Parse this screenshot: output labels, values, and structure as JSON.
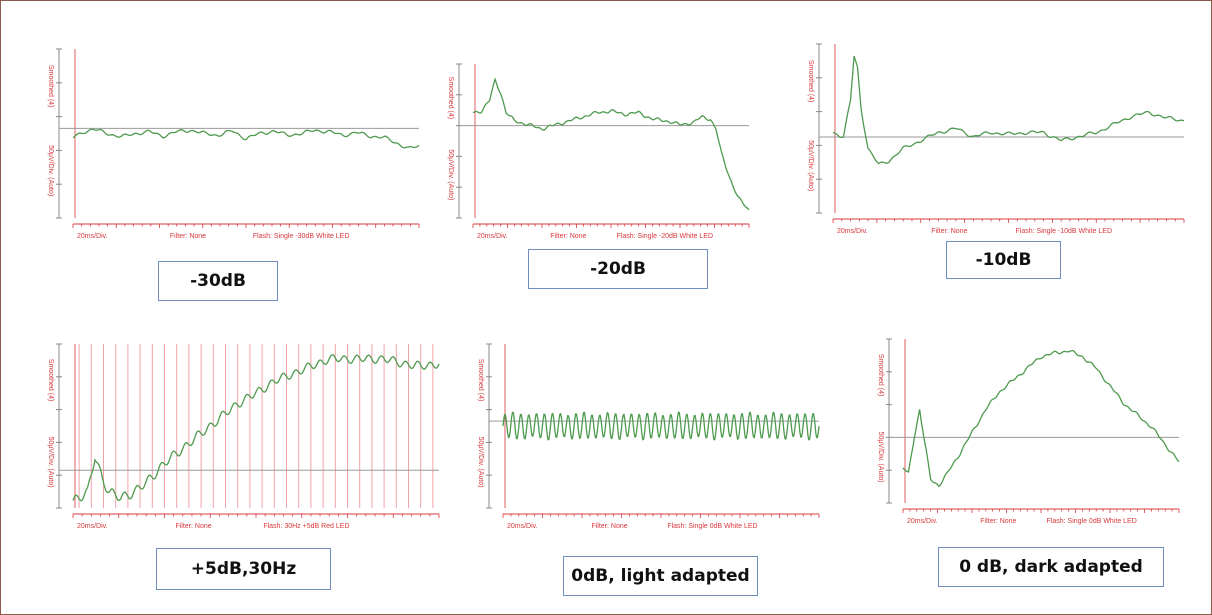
{
  "figure": {
    "colors": {
      "trace": "#4e9a4e",
      "axis": "#d8383c",
      "baseline": "#9a9a9a",
      "stim_lines": "#f2a2a8",
      "caption_border": "#6f8fc0"
    },
    "trace_style": "green trace on white with red time axis"
  },
  "chart_data": [
    {
      "type": "line",
      "caption": "-30dB",
      "y_label_top": "Smoothed (4)",
      "y_label_bottom": "50µV/Div. (Auto)",
      "x_div_label": "20ms/Div.",
      "filter_label": "Filter: None",
      "flash_label": "Flash: Single -30dB White LED",
      "x": [
        0,
        0.03,
        0.06,
        0.1,
        0.14,
        0.18,
        0.22,
        0.26,
        0.3,
        0.34,
        0.38,
        0.42,
        0.46,
        0.5,
        0.54,
        0.58,
        0.62,
        0.66,
        0.7,
        0.74,
        0.78,
        0.82,
        0.86,
        0.9,
        0.94,
        0.97,
        1.0
      ],
      "y": [
        -0.05,
        0.02,
        0.05,
        0.0,
        -0.04,
        0.0,
        0.02,
        -0.03,
        0.02,
        0.04,
        0.0,
        -0.02,
        0.03,
        -0.06,
        0.0,
        0.03,
        -0.02,
        0.0,
        0.04,
        0.02,
        -0.02,
        0.01,
        -0.03,
        -0.05,
        -0.12,
        -0.18,
        -0.15
      ],
      "ylim": [
        -1,
        1
      ],
      "stim_lines": 0
    },
    {
      "type": "line",
      "caption": "-20dB",
      "y_label_top": "Smoothed (4)",
      "y_label_bottom": "50µV/Div. (Auto)",
      "x_div_label": "20ms/Div.",
      "filter_label": "Filter: None",
      "flash_label": "Flash: Single -20dB White LED",
      "x": [
        0,
        0.03,
        0.06,
        0.08,
        0.1,
        0.12,
        0.15,
        0.2,
        0.25,
        0.3,
        0.35,
        0.4,
        0.45,
        0.5,
        0.55,
        0.6,
        0.65,
        0.7,
        0.75,
        0.8,
        0.83,
        0.86,
        0.88,
        0.9,
        0.93,
        0.96,
        1.0
      ],
      "y": [
        0.2,
        0.22,
        0.35,
        0.6,
        0.45,
        0.2,
        0.1,
        0.05,
        0.0,
        0.05,
        0.1,
        0.15,
        0.2,
        0.22,
        0.18,
        0.2,
        0.12,
        0.1,
        0.05,
        0.08,
        0.15,
        0.12,
        0.0,
        -0.3,
        -0.6,
        -0.85,
        -1.0
      ],
      "ylim": [
        -1.1,
        0.8
      ],
      "stim_lines": 0
    },
    {
      "type": "line",
      "caption": "-10dB",
      "y_label_top": "Smoothed (4)",
      "y_label_bottom": "50µV/Div. (Auto)",
      "x_div_label": "20ms/Div.",
      "filter_label": "Filter: None",
      "flash_label": "Flash: Single -10dB White LED",
      "x": [
        0,
        0.03,
        0.05,
        0.06,
        0.07,
        0.08,
        0.1,
        0.13,
        0.16,
        0.2,
        0.25,
        0.3,
        0.35,
        0.4,
        0.45,
        0.5,
        0.55,
        0.6,
        0.65,
        0.7,
        0.75,
        0.8,
        0.85,
        0.9,
        0.95,
        1.0
      ],
      "y": [
        0.0,
        -0.05,
        0.4,
        0.95,
        0.8,
        0.3,
        -0.2,
        -0.4,
        -0.35,
        -0.2,
        -0.1,
        0.0,
        0.05,
        -0.05,
        0.0,
        -0.02,
        0.0,
        0.0,
        -0.1,
        -0.05,
        0.0,
        0.1,
        0.2,
        0.25,
        0.18,
        0.15
      ],
      "ylim": [
        -1,
        1.1
      ],
      "stim_lines": 0
    },
    {
      "type": "line",
      "caption": "+5dB,30Hz",
      "y_label_top": "Smoothed (4)",
      "y_label_bottom": "50µV/Div. (Auto)",
      "x_div_label": "20ms/Div.",
      "filter_label": "Filter: None",
      "flash_label": "Flash: 30Hz +5dB Red LED",
      "x": [
        0,
        0.04,
        0.06,
        0.08,
        0.1,
        0.13,
        0.17,
        0.2,
        0.25,
        0.3,
        0.35,
        0.4,
        0.45,
        0.5,
        0.55,
        0.6,
        0.65,
        0.7,
        0.75,
        0.8,
        0.85,
        0.9,
        0.95,
        1.0
      ],
      "y": [
        0.0,
        0.05,
        0.3,
        0.15,
        0.05,
        0.02,
        0.06,
        0.12,
        0.25,
        0.35,
        0.45,
        0.55,
        0.65,
        0.72,
        0.8,
        0.85,
        0.9,
        0.95,
        0.95,
        0.95,
        0.95,
        0.92,
        0.9,
        0.92
      ],
      "ylim": [
        -0.05,
        1.05
      ],
      "ripple": 0.03,
      "ripple_cycles": 30,
      "stim_lines": 30
    },
    {
      "type": "line",
      "caption": "0dB, light adapted",
      "y_label_top": "Smoothed (4)",
      "y_label_bottom": "50µV/Div. (Auto)",
      "x_div_label": "20ms/Div.",
      "filter_label": "Filter: None",
      "flash_label": "Flash: Single 0dB White LED",
      "x": [
        0,
        0.2,
        0.4,
        0.6,
        0.8,
        1.0
      ],
      "y": [
        0.0,
        0.0,
        0.0,
        0.0,
        0.0,
        0.0
      ],
      "ylim": [
        -1,
        1
      ],
      "ripple": 0.15,
      "ripple_cycles": 40,
      "stim_lines": 0
    },
    {
      "type": "line",
      "caption": "0 dB, dark adapted",
      "y_label_top": "Smoothed (4)",
      "y_label_bottom": "50µV/Div. (Auto)",
      "x_div_label": "20ms/Div.",
      "filter_label": "Filter: None",
      "flash_label": "Flash: Single 0dB White LED",
      "x": [
        0,
        0.02,
        0.04,
        0.06,
        0.08,
        0.1,
        0.13,
        0.16,
        0.2,
        0.25,
        0.3,
        0.35,
        0.4,
        0.45,
        0.5,
        0.55,
        0.6,
        0.65,
        0.7,
        0.75,
        0.8,
        0.85,
        0.9,
        0.95,
        1.0
      ],
      "y": [
        0.0,
        -0.05,
        0.25,
        0.5,
        0.2,
        -0.1,
        -0.15,
        -0.05,
        0.1,
        0.3,
        0.5,
        0.65,
        0.75,
        0.85,
        0.95,
        0.98,
        1.0,
        0.95,
        0.85,
        0.7,
        0.55,
        0.45,
        0.35,
        0.2,
        0.05
      ],
      "ylim": [
        -0.3,
        1.1
      ],
      "stim_lines": 0
    }
  ]
}
